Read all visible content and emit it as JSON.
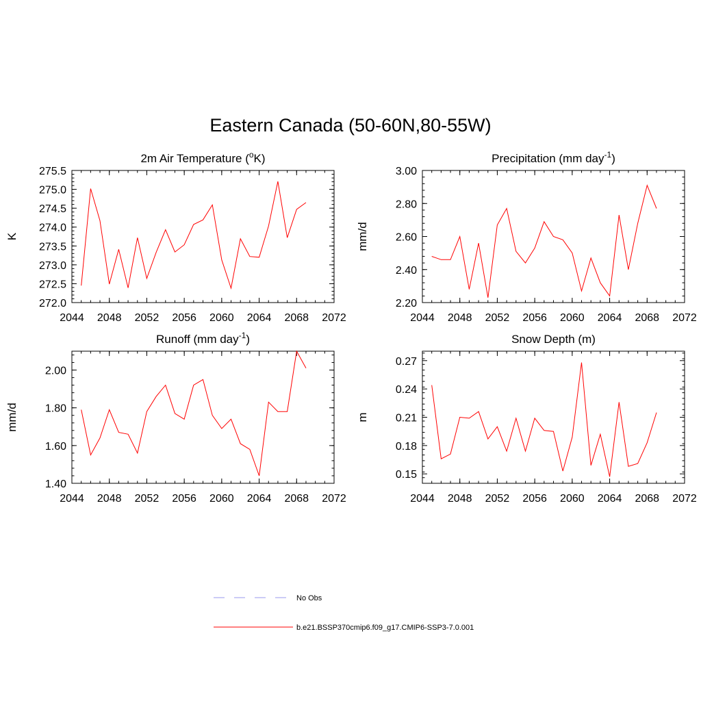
{
  "title": "Eastern Canada (50-60N,80-55W)",
  "colors": {
    "series": "#ff0000",
    "obs": "#9999ee",
    "axis": "#000000"
  },
  "legend": [
    {
      "label": "No Obs",
      "style": "dashed",
      "color": "#9999ee"
    },
    {
      "label": "b.e21.BSSP370cmip6.f09_g17.CMIP6-SSP3-7.0.001",
      "style": "solid",
      "color": "#ff0000"
    }
  ],
  "chart_data": [
    {
      "type": "line",
      "title_main": "2m Air Temperature (",
      "title_sup": "o",
      "title_tail": "K)",
      "ylabel": "K",
      "xlim": [
        2044,
        2072
      ],
      "ylim": [
        272.0,
        275.5
      ],
      "xticks": [
        2044,
        2048,
        2052,
        2056,
        2060,
        2064,
        2068,
        2072
      ],
      "yticks": [
        "272.0",
        "272.5",
        "273.0",
        "273.5",
        "274.0",
        "274.5",
        "275.0",
        "275.5"
      ],
      "x": [
        2045,
        2046,
        2047,
        2048,
        2049,
        2050,
        2051,
        2052,
        2053,
        2054,
        2055,
        2056,
        2057,
        2058,
        2059,
        2060,
        2061,
        2062,
        2063,
        2064,
        2065,
        2066,
        2067,
        2068,
        2069
      ],
      "series": [
        {
          "name": "b.e21.BSSP370cmip6.f09_g17.CMIP6-SSP3-7.0.001",
          "values": [
            272.45,
            275.02,
            274.17,
            272.49,
            273.41,
            272.39,
            273.72,
            272.64,
            273.33,
            273.93,
            273.34,
            273.53,
            274.07,
            274.19,
            274.59,
            273.13,
            272.38,
            273.69,
            273.22,
            273.2,
            274.03,
            275.21,
            273.72,
            274.47,
            274.65
          ]
        }
      ]
    },
    {
      "type": "line",
      "title_main": "Precipitation (mm day",
      "title_sup": "-1",
      "title_tail": ")",
      "ylabel": "mm/d",
      "xlim": [
        2044,
        2072
      ],
      "ylim": [
        2.2,
        3.0
      ],
      "xticks": [
        2044,
        2048,
        2052,
        2056,
        2060,
        2064,
        2068,
        2072
      ],
      "yticks": [
        "2.20",
        "2.40",
        "2.60",
        "2.80",
        "3.00"
      ],
      "x": [
        2045,
        2046,
        2047,
        2048,
        2049,
        2050,
        2051,
        2052,
        2053,
        2054,
        2055,
        2056,
        2057,
        2058,
        2059,
        2060,
        2061,
        2062,
        2063,
        2064,
        2065,
        2066,
        2067,
        2068,
        2069
      ],
      "series": [
        {
          "name": "b.e21.BSSP370cmip6.f09_g17.CMIP6-SSP3-7.0.001",
          "values": [
            2.48,
            2.46,
            2.46,
            2.6,
            2.28,
            2.56,
            2.23,
            2.67,
            2.77,
            2.51,
            2.44,
            2.53,
            2.69,
            2.6,
            2.58,
            2.5,
            2.27,
            2.47,
            2.32,
            2.24,
            2.73,
            2.4,
            2.68,
            2.91,
            2.77
          ]
        }
      ]
    },
    {
      "type": "line",
      "title_main": "Runoff (mm day",
      "title_sup": "-1",
      "title_tail": ")",
      "ylabel": "mm/d",
      "xlim": [
        2044,
        2072
      ],
      "ylim": [
        1.4,
        2.1
      ],
      "xticks": [
        2044,
        2048,
        2052,
        2056,
        2060,
        2064,
        2068,
        2072
      ],
      "yticks": [
        "1.40",
        "1.60",
        "1.80",
        "2.00"
      ],
      "x": [
        2045,
        2046,
        2047,
        2048,
        2049,
        2050,
        2051,
        2052,
        2053,
        2054,
        2055,
        2056,
        2057,
        2058,
        2059,
        2060,
        2061,
        2062,
        2063,
        2064,
        2065,
        2066,
        2067,
        2068,
        2069
      ],
      "series": [
        {
          "name": "b.e21.BSSP370cmip6.f09_g17.CMIP6-SSP3-7.0.001",
          "values": [
            1.79,
            1.55,
            1.64,
            1.79,
            1.67,
            1.66,
            1.56,
            1.78,
            1.86,
            1.92,
            1.77,
            1.74,
            1.92,
            1.95,
            1.76,
            1.69,
            1.74,
            1.61,
            1.58,
            1.44,
            1.83,
            1.78,
            1.78,
            2.1,
            2.01
          ]
        }
      ]
    },
    {
      "type": "line",
      "title_main": "Snow Depth (m)",
      "title_sup": "",
      "title_tail": "",
      "ylabel": "m",
      "xlim": [
        2044,
        2072
      ],
      "ylim": [
        0.14,
        0.28
      ],
      "xticks": [
        2044,
        2048,
        2052,
        2056,
        2060,
        2064,
        2068,
        2072
      ],
      "yticks": [
        "0.15",
        "0.18",
        "0.21",
        "0.24",
        "0.27"
      ],
      "x": [
        2045,
        2046,
        2047,
        2048,
        2049,
        2050,
        2051,
        2052,
        2053,
        2054,
        2055,
        2056,
        2057,
        2058,
        2059,
        2060,
        2061,
        2062,
        2063,
        2064,
        2065,
        2066,
        2067,
        2068,
        2069
      ],
      "series": [
        {
          "name": "b.e21.BSSP370cmip6.f09_g17.CMIP6-SSP3-7.0.001",
          "values": [
            0.244,
            0.166,
            0.171,
            0.21,
            0.209,
            0.216,
            0.187,
            0.2,
            0.174,
            0.209,
            0.174,
            0.209,
            0.196,
            0.195,
            0.153,
            0.189,
            0.268,
            0.159,
            0.192,
            0.147,
            0.226,
            0.158,
            0.161,
            0.183,
            0.215
          ]
        }
      ]
    }
  ]
}
